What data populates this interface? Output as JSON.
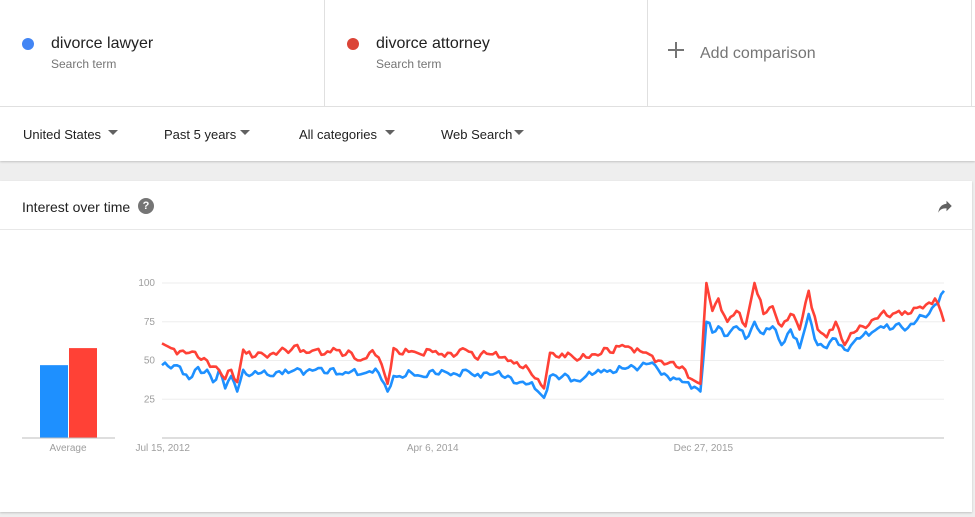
{
  "terms": [
    {
      "name": "divorce lawyer",
      "sub": "Search term",
      "color": "#4285f4"
    },
    {
      "name": "divorce attorney",
      "sub": "Search term",
      "color": "#db4437"
    }
  ],
  "add_comparison": "Add comparison",
  "filters": {
    "region": "United States",
    "time": "Past 5 years",
    "category": "All categories",
    "search_type": "Web Search"
  },
  "card": {
    "title": "Interest over time",
    "help_icon": "?"
  },
  "chart_data": {
    "type": "line",
    "average": {
      "label": "Average",
      "series": [
        {
          "name": "divorce lawyer",
          "value": 47,
          "color": "#1e90ff"
        },
        {
          "name": "divorce attorney",
          "value": 58,
          "color": "#ff4136"
        }
      ]
    },
    "x_ticks": [
      "Jul 15, 2012",
      "Apr 6, 2014",
      "Dec 27, 2015"
    ],
    "y_ticks": [
      100,
      75,
      50,
      25
    ],
    "ylim": [
      0,
      100
    ],
    "grid": true,
    "weeks": 261,
    "series": [
      {
        "name": "divorce lawyer",
        "color": "#1e90ff",
        "keypoints": [
          [
            0,
            47
          ],
          [
            3,
            45
          ],
          [
            6,
            46
          ],
          [
            9,
            38
          ],
          [
            11,
            44
          ],
          [
            13,
            42
          ],
          [
            15,
            44
          ],
          [
            17,
            36
          ],
          [
            19,
            44
          ],
          [
            21,
            32
          ],
          [
            23,
            40
          ],
          [
            25,
            30
          ],
          [
            27,
            44
          ],
          [
            30,
            41
          ],
          [
            33,
            42
          ],
          [
            36,
            40
          ],
          [
            39,
            43
          ],
          [
            42,
            42
          ],
          [
            45,
            45
          ],
          [
            48,
            43
          ],
          [
            51,
            44
          ],
          [
            54,
            42
          ],
          [
            57,
            45
          ],
          [
            60,
            41
          ],
          [
            63,
            43
          ],
          [
            66,
            41
          ],
          [
            69,
            43
          ],
          [
            72,
            42
          ],
          [
            75,
            30
          ],
          [
            77,
            40
          ],
          [
            80,
            39
          ],
          [
            83,
            42
          ],
          [
            86,
            40
          ],
          [
            89,
            43
          ],
          [
            92,
            41
          ],
          [
            95,
            42
          ],
          [
            98,
            41
          ],
          [
            101,
            44
          ],
          [
            104,
            40
          ],
          [
            107,
            42
          ],
          [
            110,
            41
          ],
          [
            113,
            40
          ],
          [
            116,
            39
          ],
          [
            119,
            36
          ],
          [
            122,
            35
          ],
          [
            125,
            30
          ],
          [
            127,
            26
          ],
          [
            129,
            40
          ],
          [
            132,
            38
          ],
          [
            135,
            40
          ],
          [
            138,
            37
          ],
          [
            141,
            40
          ],
          [
            144,
            42
          ],
          [
            147,
            44
          ],
          [
            150,
            42
          ],
          [
            153,
            45
          ],
          [
            156,
            47
          ],
          [
            159,
            46
          ],
          [
            162,
            48
          ],
          [
            165,
            44
          ],
          [
            168,
            40
          ],
          [
            171,
            38
          ],
          [
            174,
            36
          ],
          [
            177,
            33
          ],
          [
            179,
            30
          ],
          [
            181,
            75
          ],
          [
            183,
            68
          ],
          [
            185,
            72
          ],
          [
            188,
            66
          ],
          [
            191,
            72
          ],
          [
            194,
            64
          ],
          [
            197,
            75
          ],
          [
            200,
            67
          ],
          [
            203,
            72
          ],
          [
            206,
            60
          ],
          [
            209,
            70
          ],
          [
            212,
            58
          ],
          [
            215,
            80
          ],
          [
            218,
            60
          ],
          [
            221,
            58
          ],
          [
            224,
            64
          ],
          [
            227,
            57
          ],
          [
            230,
            62
          ],
          [
            233,
            66
          ],
          [
            236,
            68
          ],
          [
            239,
            72
          ],
          [
            242,
            70
          ],
          [
            245,
            74
          ],
          [
            248,
            71
          ],
          [
            251,
            76
          ],
          [
            254,
            78
          ],
          [
            257,
            86
          ],
          [
            260,
            95
          ]
        ]
      },
      {
        "name": "divorce attorney",
        "color": "#ff4136",
        "keypoints": [
          [
            0,
            61
          ],
          [
            3,
            58
          ],
          [
            6,
            56
          ],
          [
            9,
            55
          ],
          [
            12,
            52
          ],
          [
            15,
            50
          ],
          [
            18,
            46
          ],
          [
            21,
            38
          ],
          [
            23,
            44
          ],
          [
            25,
            36
          ],
          [
            27,
            57
          ],
          [
            30,
            52
          ],
          [
            33,
            55
          ],
          [
            36,
            54
          ],
          [
            39,
            56
          ],
          [
            42,
            55
          ],
          [
            45,
            60
          ],
          [
            48,
            55
          ],
          [
            51,
            57
          ],
          [
            54,
            54
          ],
          [
            57,
            58
          ],
          [
            60,
            53
          ],
          [
            63,
            55
          ],
          [
            66,
            50
          ],
          [
            69,
            55
          ],
          [
            72,
            52
          ],
          [
            75,
            35
          ],
          [
            77,
            58
          ],
          [
            80,
            54
          ],
          [
            83,
            56
          ],
          [
            86,
            54
          ],
          [
            89,
            57
          ],
          [
            92,
            54
          ],
          [
            95,
            55
          ],
          [
            98,
            54
          ],
          [
            101,
            57
          ],
          [
            104,
            52
          ],
          [
            107,
            56
          ],
          [
            110,
            54
          ],
          [
            113,
            52
          ],
          [
            116,
            50
          ],
          [
            119,
            46
          ],
          [
            122,
            44
          ],
          [
            125,
            38
          ],
          [
            127,
            32
          ],
          [
            129,
            55
          ],
          [
            132,
            52
          ],
          [
            135,
            55
          ],
          [
            138,
            50
          ],
          [
            141,
            52
          ],
          [
            144,
            54
          ],
          [
            147,
            58
          ],
          [
            150,
            55
          ],
          [
            153,
            60
          ],
          [
            156,
            58
          ],
          [
            159,
            56
          ],
          [
            162,
            54
          ],
          [
            165,
            50
          ],
          [
            168,
            48
          ],
          [
            171,
            46
          ],
          [
            174,
            44
          ],
          [
            177,
            37
          ],
          [
            179,
            35
          ],
          [
            181,
            100
          ],
          [
            183,
            82
          ],
          [
            185,
            90
          ],
          [
            188,
            75
          ],
          [
            191,
            82
          ],
          [
            194,
            72
          ],
          [
            197,
            100
          ],
          [
            200,
            80
          ],
          [
            203,
            85
          ],
          [
            206,
            72
          ],
          [
            209,
            80
          ],
          [
            212,
            70
          ],
          [
            215,
            95
          ],
          [
            218,
            70
          ],
          [
            221,
            65
          ],
          [
            224,
            75
          ],
          [
            227,
            60
          ],
          [
            230,
            68
          ],
          [
            233,
            72
          ],
          [
            236,
            76
          ],
          [
            239,
            80
          ],
          [
            242,
            78
          ],
          [
            245,
            82
          ],
          [
            248,
            80
          ],
          [
            251,
            84
          ],
          [
            254,
            86
          ],
          [
            257,
            90
          ],
          [
            260,
            75
          ]
        ]
      }
    ]
  }
}
